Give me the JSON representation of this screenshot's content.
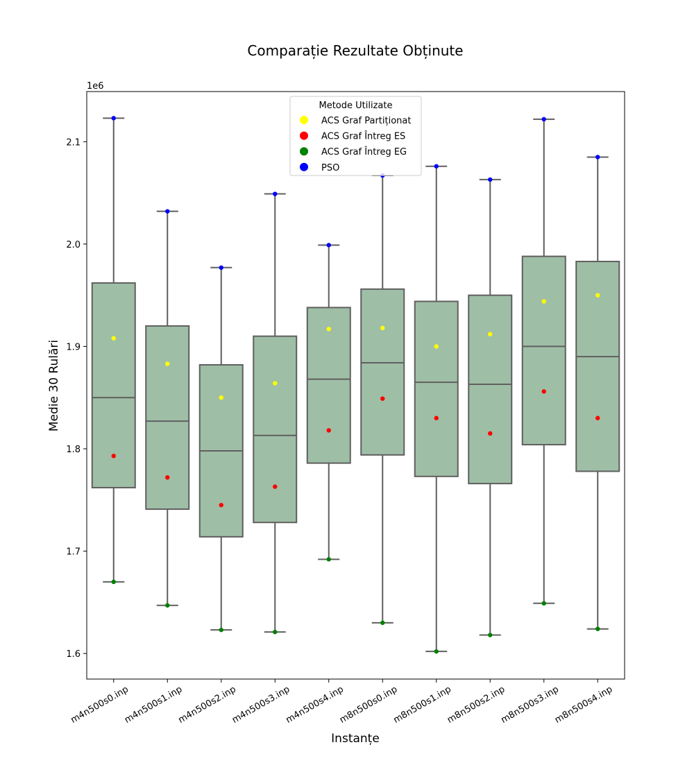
{
  "chart_data": {
    "type": "box",
    "title": "Comparație Rezultate Obținute",
    "xlabel": "Instanțe",
    "ylabel": "Medie 30 Rulări",
    "y_offset_label": "1e6",
    "ylim": [
      1.575,
      2.149
    ],
    "yticks": [
      1.6,
      1.7,
      1.8,
      1.9,
      2.0,
      2.1
    ],
    "ytick_labels": [
      "1.6",
      "1.7",
      "1.8",
      "1.9",
      "2.0",
      "2.1"
    ],
    "grid": false,
    "box_color": "#9fbea6",
    "box_edge_color": "#5f5f5f",
    "legend": {
      "title": "Metode Utilizate",
      "placement": "top-center",
      "entries": [
        {
          "label": "ACS Graf Partiționat",
          "color": "#ffff00"
        },
        {
          "label": "ACS Graf Întreg ES",
          "color": "#ff0000"
        },
        {
          "label": "ACS Graf Întreg EG",
          "color": "#008000"
        },
        {
          "label": "PSO",
          "color": "#0000ff"
        }
      ]
    },
    "categories": [
      "m4n500s0.inp",
      "m4n500s1.inp",
      "m4n500s2.inp",
      "m4n500s3.inp",
      "m4n500s4.inp",
      "m8n500s0.inp",
      "m8n500s1.inp",
      "m8n500s2.inp",
      "m8n500s3.inp",
      "m8n500s4.inp"
    ],
    "boxes": [
      {
        "min": 1.67,
        "q1": 1.762,
        "median": 1.85,
        "q3": 1.962,
        "max": 2.123
      },
      {
        "min": 1.647,
        "q1": 1.741,
        "median": 1.827,
        "q3": 1.92,
        "max": 2.032
      },
      {
        "min": 1.623,
        "q1": 1.714,
        "median": 1.798,
        "q3": 1.882,
        "max": 1.977
      },
      {
        "min": 1.621,
        "q1": 1.728,
        "median": 1.813,
        "q3": 1.91,
        "max": 2.049
      },
      {
        "min": 1.692,
        "q1": 1.786,
        "median": 1.868,
        "q3": 1.938,
        "max": 1.999
      },
      {
        "min": 1.63,
        "q1": 1.794,
        "median": 1.884,
        "q3": 1.956,
        "max": 2.067
      },
      {
        "min": 1.602,
        "q1": 1.773,
        "median": 1.865,
        "q3": 1.944,
        "max": 2.076
      },
      {
        "min": 1.618,
        "q1": 1.766,
        "median": 1.863,
        "q3": 1.95,
        "max": 2.063
      },
      {
        "min": 1.649,
        "q1": 1.804,
        "median": 1.9,
        "q3": 1.988,
        "max": 2.122
      },
      {
        "min": 1.624,
        "q1": 1.778,
        "median": 1.89,
        "q3": 1.983,
        "max": 2.085
      }
    ],
    "series": [
      {
        "name": "ACS Graf Partiționat",
        "color": "#ffff00",
        "values": [
          1.908,
          1.883,
          1.85,
          1.864,
          1.917,
          1.918,
          1.9,
          1.912,
          1.944,
          1.95
        ]
      },
      {
        "name": "ACS Graf Întreg ES",
        "color": "#ff0000",
        "values": [
          1.793,
          1.772,
          1.745,
          1.763,
          1.818,
          1.849,
          1.83,
          1.815,
          1.856,
          1.83
        ]
      },
      {
        "name": "ACS Graf Întreg EG",
        "color": "#008000",
        "values": [
          1.67,
          1.647,
          1.623,
          1.621,
          1.692,
          1.63,
          1.602,
          1.618,
          1.649,
          1.624
        ]
      },
      {
        "name": "PSO",
        "color": "#0000ff",
        "values": [
          2.123,
          2.032,
          1.977,
          2.049,
          1.999,
          2.067,
          2.076,
          2.063,
          2.122,
          2.085
        ]
      }
    ]
  }
}
